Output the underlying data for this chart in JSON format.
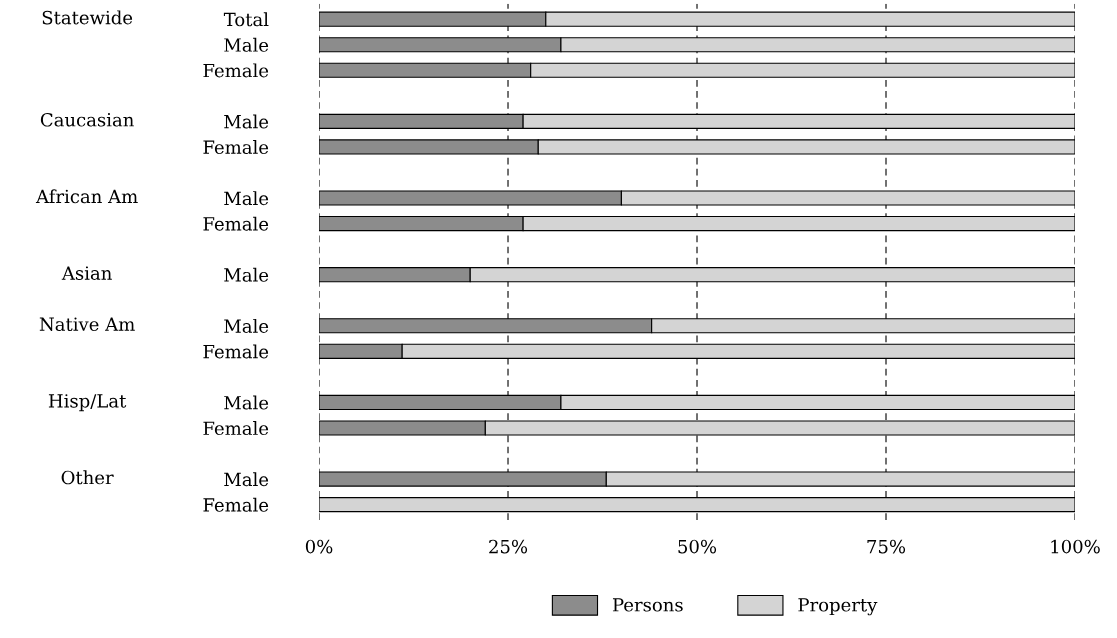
{
  "chart_data": {
    "type": "bar",
    "orientation": "horizontal",
    "stacked": true,
    "categories": [
      "Total",
      "Male",
      "Female",
      null,
      "Male",
      "Female",
      null,
      "Male",
      "Female",
      null,
      "Male",
      null,
      "Male",
      "Female",
      null,
      "Male",
      "Female",
      null,
      "Male",
      "Female"
    ],
    "series": [
      {
        "name": "Persons",
        "color": "#8c8c8c",
        "values": [
          30,
          32,
          28,
          null,
          27,
          29,
          null,
          40,
          27,
          null,
          20,
          null,
          44,
          11,
          null,
          32,
          22,
          null,
          38,
          0
        ]
      },
      {
        "name": "Property",
        "color": "#d4d4d4",
        "values": [
          70,
          68,
          72,
          null,
          73,
          71,
          null,
          60,
          73,
          null,
          80,
          null,
          56,
          89,
          null,
          68,
          78,
          null,
          62,
          100
        ]
      }
    ],
    "annotations": [
      "Statewide",
      "Caucasian",
      "African Am",
      "Asian",
      "Native Am",
      "Hisp/Lat",
      "Other"
    ],
    "xlim": [
      0,
      100
    ],
    "xticks": [
      {
        "value": 0,
        "label": "0%"
      },
      {
        "value": 25,
        "label": "25%"
      },
      {
        "value": 50,
        "label": "50%"
      },
      {
        "value": 75,
        "label": "75%"
      },
      {
        "value": 100,
        "label": "100%"
      }
    ],
    "grid": "x",
    "legend": "bottom"
  }
}
